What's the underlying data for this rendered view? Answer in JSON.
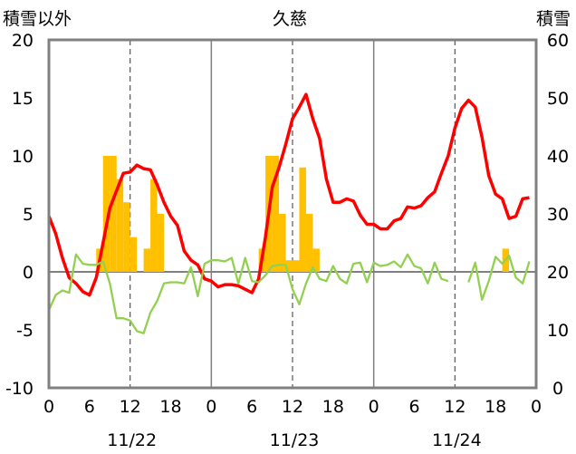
{
  "header": {
    "left_label": "積雪以外",
    "title": "久慈",
    "right_label": "積雪"
  },
  "colors": {
    "temperature": "#ff0000",
    "secondary_line": "#92d050",
    "snow_bars": "#ffc000",
    "zero_line": "#808080",
    "baseline": "#7030a0",
    "frame": "#808080"
  },
  "chart_data": {
    "type": "line",
    "title": "久慈",
    "hours_per_day": 24,
    "days": [
      "11/22",
      "11/23",
      "11/24"
    ],
    "x_tick_labels": [
      "0",
      "6",
      "12",
      "18",
      "0",
      "6",
      "12",
      "18",
      "0",
      "6",
      "12",
      "18",
      "0"
    ],
    "left_axis": {
      "label": "積雪以外",
      "min": -10,
      "max": 20,
      "ticks": [
        "20",
        "15",
        "10",
        "5",
        "0",
        "-5",
        "-10"
      ],
      "tick_values": [
        20,
        15,
        10,
        5,
        0,
        -5,
        -10
      ]
    },
    "right_axis": {
      "label": "積雪",
      "min": 0,
      "max": 60,
      "ticks": [
        "60",
        "50",
        "40",
        "30",
        "20",
        "10",
        "0"
      ],
      "tick_values": [
        60,
        50,
        40,
        30,
        20,
        10,
        0
      ]
    },
    "grid": {
      "major_x_every_hours": 24,
      "minor_dashed_x_at_hour": 12,
      "zero_line": true
    },
    "series": [
      {
        "kind": "bar",
        "axis": "left",
        "color": "#ffc000",
        "values": [
          0,
          0,
          0,
          0,
          0,
          0,
          0,
          2,
          10,
          10,
          8,
          6,
          3,
          0,
          2,
          8,
          5,
          0,
          0,
          0,
          0,
          0,
          0,
          0,
          0,
          0,
          0,
          0,
          0,
          0,
          0,
          2,
          10,
          10,
          5,
          1,
          1,
          9,
          5,
          2,
          0,
          0,
          0,
          0,
          0,
          0,
          0,
          0,
          0,
          0,
          0,
          0,
          0,
          0,
          0,
          0,
          0,
          0,
          0,
          0,
          0,
          0,
          0,
          0,
          0,
          0,
          0,
          2,
          0,
          0,
          0,
          0
        ]
      },
      {
        "kind": "line",
        "axis": "left",
        "color": "#ff0000",
        "values": [
          4.8,
          3.3,
          1.2,
          -0.5,
          -1.0,
          -1.7,
          -2.0,
          -0.5,
          2.5,
          5.5,
          7.0,
          8.5,
          8.6,
          9.2,
          8.9,
          8.8,
          7.5,
          6.0,
          4.8,
          4.0,
          1.8,
          1.0,
          0.6,
          -0.6,
          -0.8,
          -1.3,
          -1.1,
          -1.1,
          -1.2,
          -1.5,
          -1.8,
          -0.6,
          3.0,
          7.3,
          9.0,
          11.0,
          13.2,
          14.2,
          15.3,
          13.2,
          11.5,
          8.0,
          6.0,
          6.0,
          6.3,
          6.1,
          4.9,
          4.1,
          4.1,
          3.7,
          3.7,
          4.4,
          4.6,
          5.6,
          5.5,
          5.7,
          6.4,
          6.9,
          8.5,
          10.0,
          12.4,
          14.1,
          14.8,
          14.2,
          11.6,
          8.3,
          6.7,
          6.3,
          4.6,
          4.8,
          6.3,
          6.4
        ]
      },
      {
        "kind": "line",
        "axis": "left",
        "color": "#92d050",
        "values": [
          -3.3,
          -2.0,
          -1.6,
          -1.8,
          1.5,
          0.7,
          0.6,
          0.6,
          0.9,
          -1.0,
          -4.0,
          -4.0,
          -4.2,
          -5.1,
          -5.3,
          -3.5,
          -2.5,
          -1.0,
          -0.9,
          -0.9,
          -1.0,
          0.4,
          -2.1,
          0.7,
          1.0,
          1.0,
          0.9,
          1.2,
          -1.0,
          1.2,
          -0.8,
          -0.9,
          -0.3,
          0.5,
          0.6,
          0.6,
          -1.5,
          -2.8,
          -1.0,
          0.4,
          -0.6,
          -0.8,
          0.5,
          -0.6,
          -1.0,
          0.7,
          0.8,
          -0.9,
          0.8,
          0.5,
          0.6,
          0.9,
          0.4,
          1.5,
          0.5,
          0.3,
          -1.0,
          0.8,
          -0.6,
          -0.8,
          null,
          null,
          -0.9,
          0.8,
          -2.4,
          -0.8,
          1.3,
          0.7,
          1.4,
          -0.5,
          -1.0,
          0.9
        ]
      },
      {
        "kind": "line",
        "axis": "right",
        "color": "#7030a0",
        "values": [
          0,
          0,
          0,
          0,
          0,
          0,
          0,
          0,
          0,
          0,
          0,
          0,
          0,
          0,
          0,
          0,
          0,
          0,
          0,
          0,
          0,
          0,
          0,
          0,
          0,
          0,
          0,
          0,
          0,
          0,
          0,
          0,
          0,
          0,
          0,
          0,
          0,
          0,
          0,
          0,
          0,
          0,
          0,
          0,
          0,
          0,
          0,
          0,
          0,
          0,
          0,
          0,
          0,
          0,
          0,
          0,
          0,
          0,
          0,
          0,
          0,
          0,
          0,
          0,
          0,
          0,
          0,
          0,
          0,
          0,
          0,
          0
        ]
      }
    ]
  }
}
